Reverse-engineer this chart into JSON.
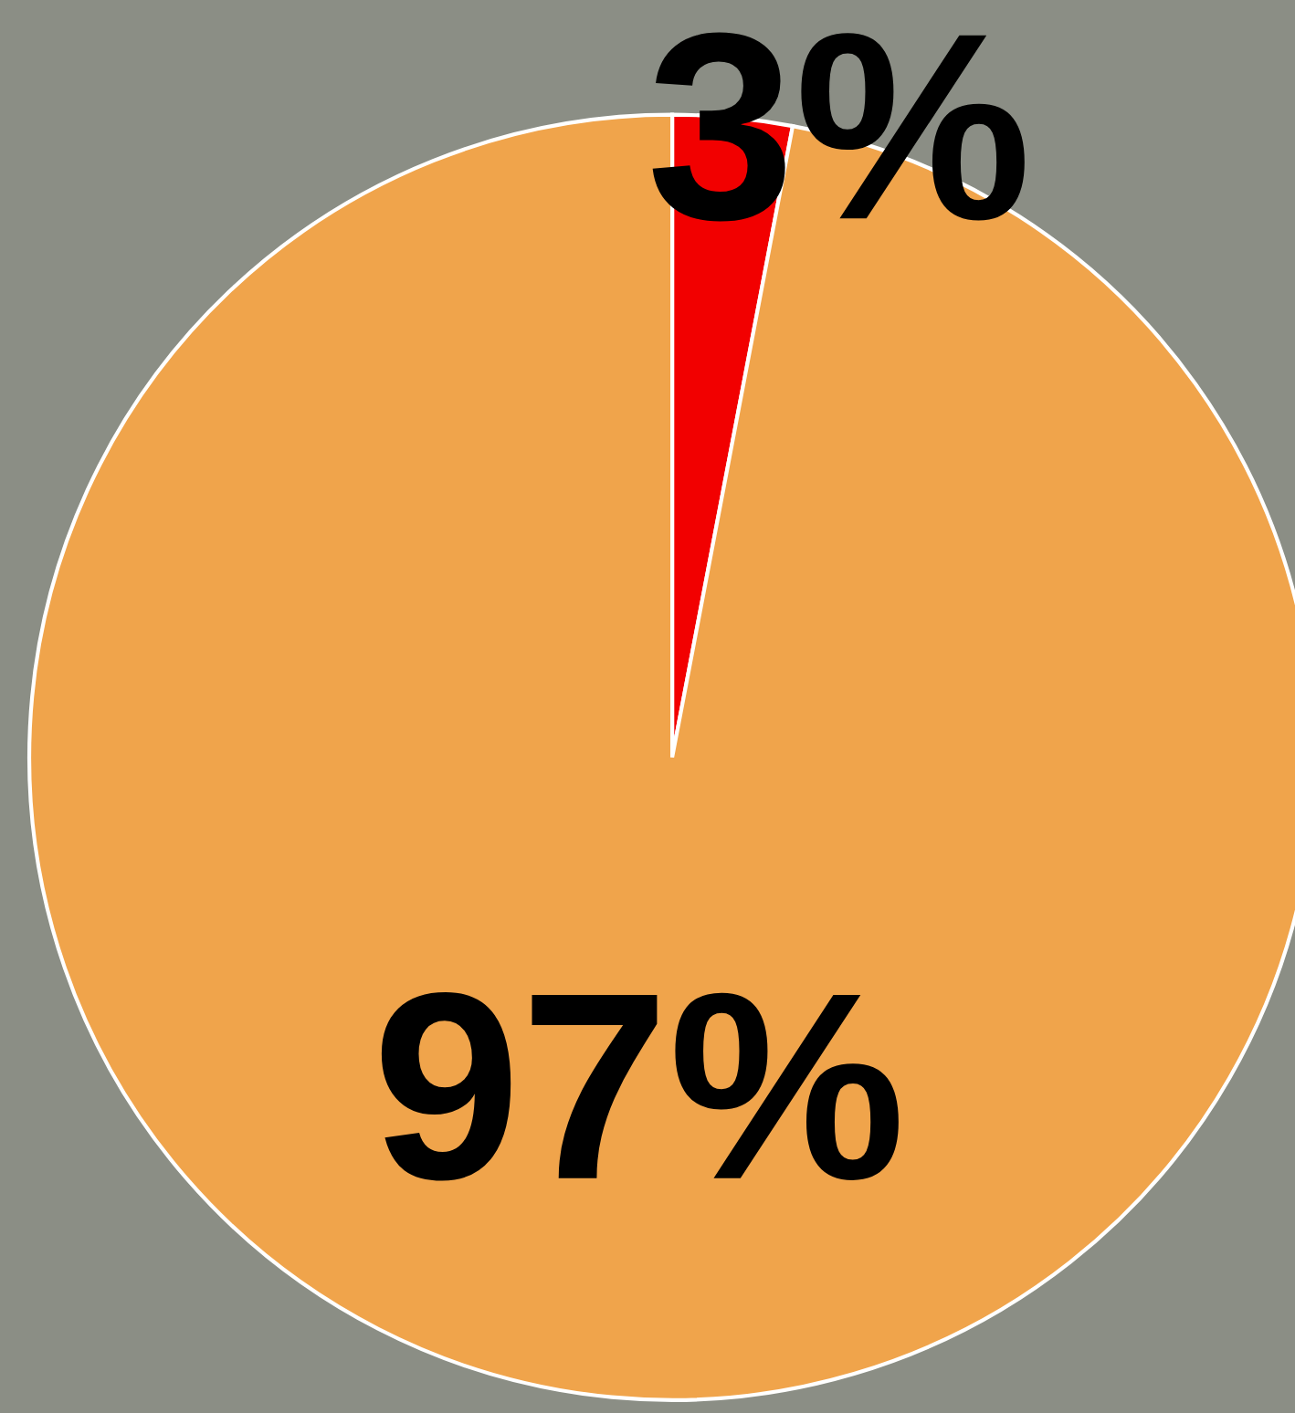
{
  "chart_data": {
    "type": "pie",
    "categories": [
      null,
      null
    ],
    "values": [
      3,
      97
    ],
    "colors": [
      "#f20000",
      "#f0a44b"
    ],
    "value_labels": [
      "3%",
      "97%"
    ]
  }
}
